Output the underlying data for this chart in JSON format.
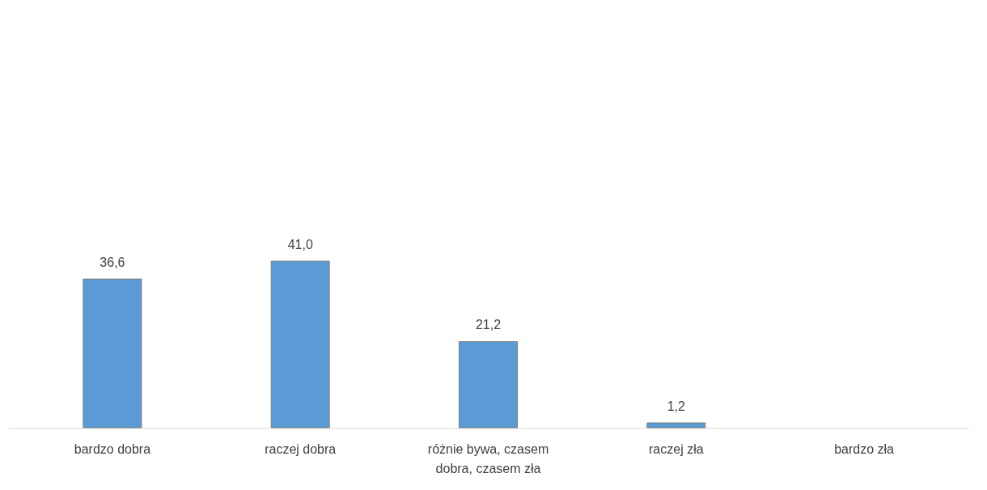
{
  "chart_data": {
    "type": "bar",
    "categories": [
      "bardzo dobra",
      "raczej dobra",
      "różnie bywa, czasem dobra, czasem zła",
      "raczej zła",
      "bardzo zła"
    ],
    "values": [
      36.6,
      41.0,
      21.2,
      1.2,
      null
    ],
    "value_labels": [
      "36,6",
      "41,0",
      "21,2",
      "1,2",
      null
    ],
    "color": "#5b9bd5",
    "tick_labels": "x",
    "grid": false
  }
}
